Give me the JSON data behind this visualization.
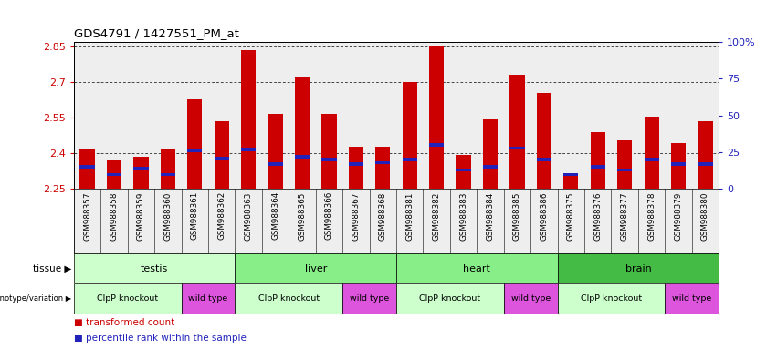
{
  "title": "GDS4791 / 1427551_PM_at",
  "samples": [
    "GSM988357",
    "GSM988358",
    "GSM988359",
    "GSM988360",
    "GSM988361",
    "GSM988362",
    "GSM988363",
    "GSM988364",
    "GSM988365",
    "GSM988366",
    "GSM988367",
    "GSM988368",
    "GSM988381",
    "GSM988382",
    "GSM988383",
    "GSM988384",
    "GSM988385",
    "GSM988386",
    "GSM988375",
    "GSM988376",
    "GSM988377",
    "GSM988378",
    "GSM988379",
    "GSM988380"
  ],
  "transformed_count": [
    2.42,
    2.37,
    2.385,
    2.42,
    2.63,
    2.535,
    2.835,
    2.565,
    2.72,
    2.565,
    2.43,
    2.43,
    2.7,
    2.85,
    2.395,
    2.545,
    2.73,
    2.655,
    2.305,
    2.49,
    2.455,
    2.555,
    2.445,
    2.535
  ],
  "percentile_rank": [
    15,
    10,
    14,
    10,
    26,
    21,
    27,
    17,
    22,
    20,
    17,
    18,
    20,
    30,
    13,
    15,
    28,
    20,
    10,
    15,
    13,
    20,
    17,
    17
  ],
  "ymin": 2.25,
  "ymax": 2.87,
  "yticks": [
    2.25,
    2.4,
    2.55,
    2.7,
    2.85
  ],
  "bar_color": "#cc0000",
  "percentile_color": "#2222bb",
  "tissue_groups": [
    {
      "label": "testis",
      "start": 0,
      "end": 6,
      "color": "#ccffcc"
    },
    {
      "label": "liver",
      "start": 6,
      "end": 12,
      "color": "#88ee88"
    },
    {
      "label": "heart",
      "start": 12,
      "end": 18,
      "color": "#88ee88"
    },
    {
      "label": "brain",
      "start": 18,
      "end": 24,
      "color": "#44bb44"
    }
  ],
  "genotype_groups": [
    {
      "label": "ClpP knockout",
      "start": 0,
      "end": 4,
      "color": "#ccffcc"
    },
    {
      "label": "wild type",
      "start": 4,
      "end": 6,
      "color": "#dd55dd"
    },
    {
      "label": "ClpP knockout",
      "start": 6,
      "end": 10,
      "color": "#ccffcc"
    },
    {
      "label": "wild type",
      "start": 10,
      "end": 12,
      "color": "#dd55dd"
    },
    {
      "label": "ClpP knockout",
      "start": 12,
      "end": 16,
      "color": "#ccffcc"
    },
    {
      "label": "wild type",
      "start": 16,
      "end": 18,
      "color": "#dd55dd"
    },
    {
      "label": "ClpP knockout",
      "start": 18,
      "end": 22,
      "color": "#ccffcc"
    },
    {
      "label": "wild type",
      "start": 22,
      "end": 24,
      "color": "#dd55dd"
    }
  ],
  "right_yticks": [
    0,
    25,
    50,
    75,
    100
  ],
  "bar_color_legend": "#cc0000",
  "pct_color_legend": "#2222bb",
  "legend_label_bar": "transformed count",
  "legend_label_pct": "percentile rank within the sample",
  "bg_color": "#eeeeee"
}
